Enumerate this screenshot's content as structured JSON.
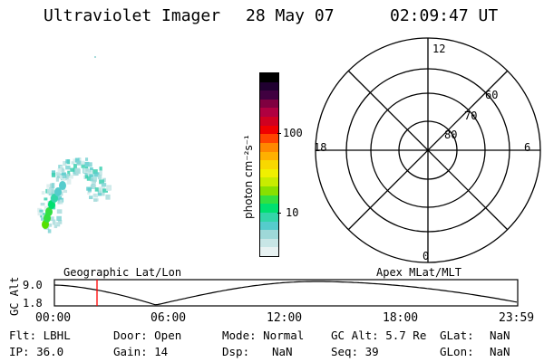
{
  "header": {
    "instrument": "Ultraviolet Imager",
    "date": "28 May 07",
    "time": "02:09:47 UT"
  },
  "colorbar": {
    "unit_label": "photon cm⁻²s⁻¹",
    "ticks": [
      "100",
      "10"
    ],
    "colors": [
      "#e8f2f2",
      "#c8e6e6",
      "#9ed8d8",
      "#55cccc",
      "#33d6a8",
      "#00e070",
      "#33e040",
      "#88e000",
      "#c8ec00",
      "#f0f000",
      "#f8d800",
      "#ffb000",
      "#ff8800",
      "#ff4400",
      "#f00000",
      "#d00020",
      "#b00040",
      "#800040",
      "#400040",
      "#200030",
      "#000000"
    ]
  },
  "polar_plot": {
    "mlt_labels": [
      "12",
      "18",
      "6",
      "0"
    ],
    "lat_labels": [
      "60",
      "70",
      "80"
    ]
  },
  "timeline": {
    "left_label": "Geographic Lat/Lon",
    "right_label": "Apex MLat/MLT",
    "y_axis_label": "GC Alt",
    "y_ticks": [
      "9.0",
      "1.8"
    ],
    "x_ticks": [
      "00:00",
      "06:00",
      "12:00",
      "18:00",
      "23:59"
    ],
    "marker_color": "#ff0000"
  },
  "status": {
    "flt": "Flt: LBHL",
    "ip": "IP: 36.0",
    "door": "Door: Open",
    "gain": "Gain: 14",
    "mode": "Mode: Normal",
    "dsp_label": "Dsp:",
    "dsp_value": "NaN",
    "gc_alt": "GC Alt: 5.7 Re",
    "seq": "Seq: 39",
    "glat_label": "GLat:",
    "glat_value": "NaN",
    "glon_label": "GLon:",
    "glon_value": "NaN"
  }
}
